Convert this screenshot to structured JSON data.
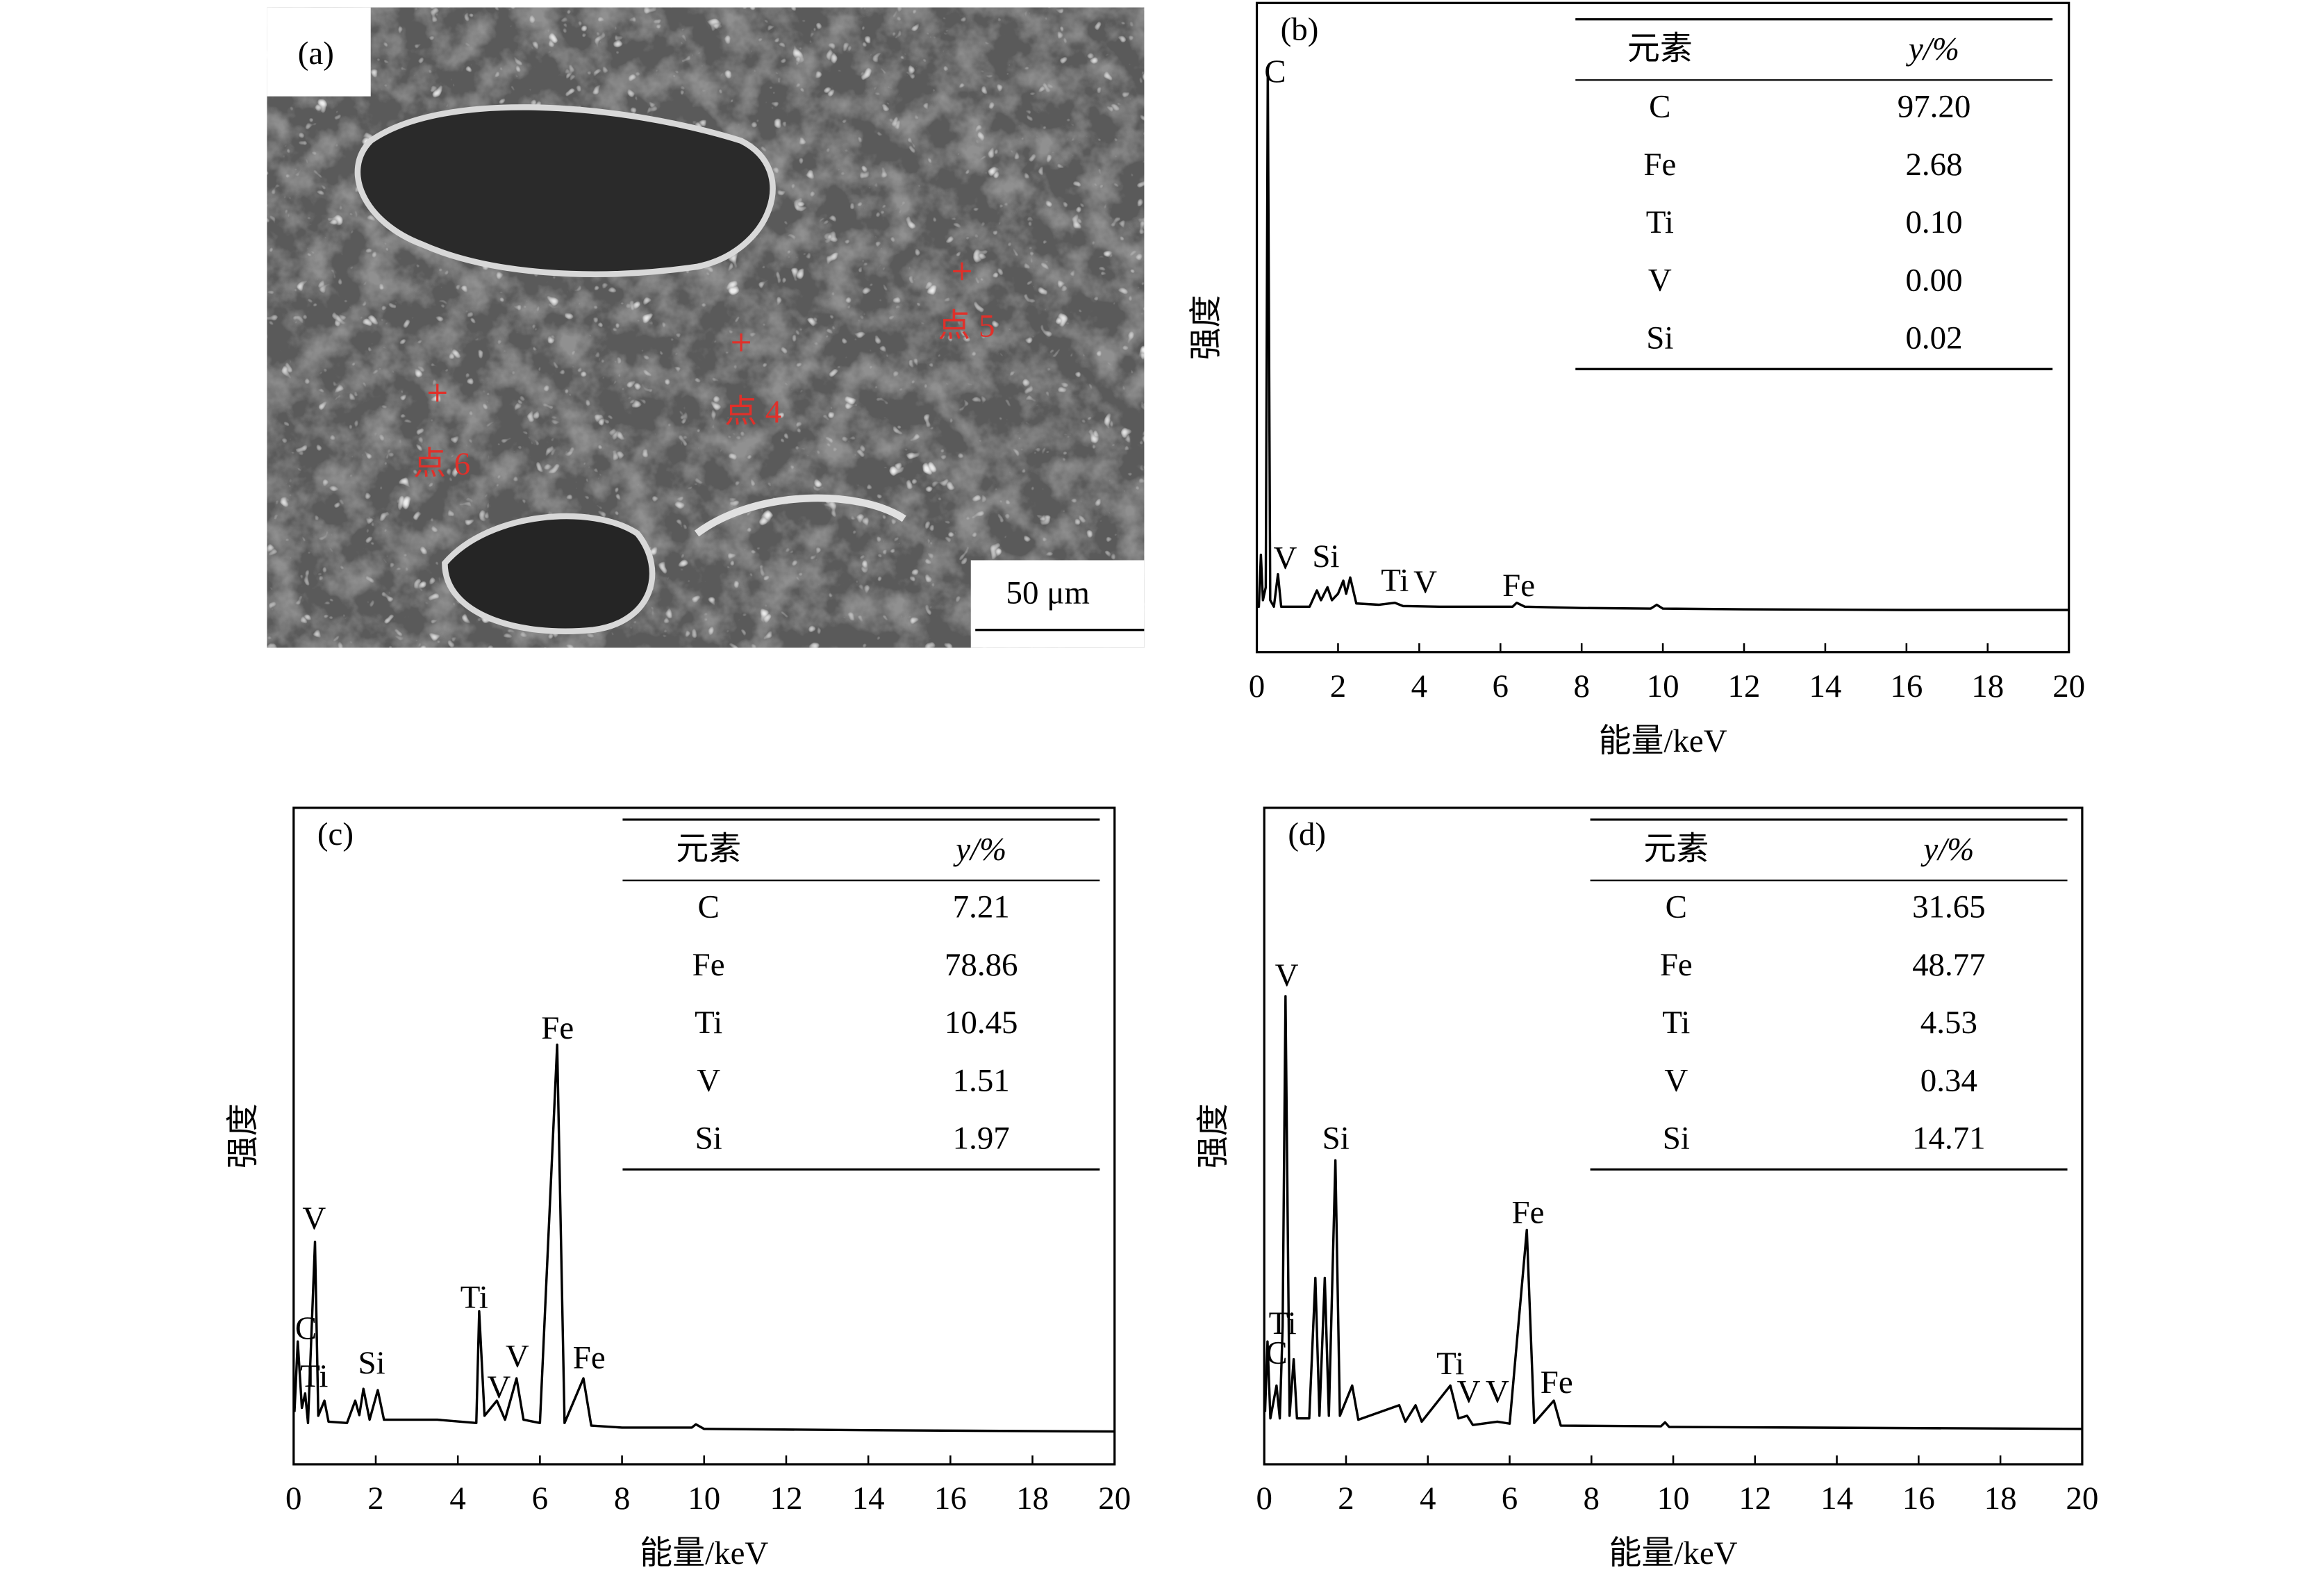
{
  "sem_image": {
    "label": "(a)",
    "points": [
      "点 4",
      "点 5",
      "点 6"
    ],
    "scale_bar": "50 μm"
  },
  "chart_data": [
    {
      "type": "line",
      "label": "(b)",
      "xlabel": "能量/keV",
      "ylabel": "强度",
      "color": "#000000",
      "xlim": [
        0,
        20
      ],
      "xticks": [
        0,
        2,
        4,
        6,
        8,
        10,
        12,
        14,
        16,
        18,
        20
      ],
      "ylim": [
        0,
        100
      ],
      "x": [
        0,
        0.05,
        0.1,
        0.15,
        0.22,
        0.27,
        0.33,
        0.42,
        0.52,
        0.6,
        0.8,
        1.0,
        1.3,
        1.48,
        1.58,
        1.74,
        1.85,
        2.0,
        2.13,
        2.2,
        2.3,
        2.45,
        3.0,
        3.4,
        3.6,
        4.5,
        6.3,
        6.4,
        6.6,
        8,
        9.7,
        9.85,
        10.0,
        12,
        16,
        20
      ],
      "values": [
        7,
        7,
        15,
        8,
        10,
        90,
        8,
        7,
        12,
        7,
        7,
        7,
        7,
        9.5,
        8,
        10,
        8,
        9,
        11,
        9,
        11.5,
        7.5,
        7.3,
        7.6,
        7.1,
        7,
        7,
        7.6,
        7,
        6.8,
        6.7,
        7.3,
        6.7,
        6.6,
        6.5,
        6.5
      ],
      "annotations": [
        {
          "text": "C",
          "x": 0.45,
          "y": 89
        },
        {
          "text": "V",
          "x": 0.7,
          "y": 14
        },
        {
          "text": "Si",
          "x": 1.7,
          "y": 14.3
        },
        {
          "text": "Ti",
          "x": 3.4,
          "y": 10.6
        },
        {
          "text": "V",
          "x": 4.15,
          "y": 10.3
        },
        {
          "text": "Fe",
          "x": 6.45,
          "y": 9.8
        }
      ],
      "table": {
        "columns": [
          "元素",
          "y/%"
        ],
        "rows": [
          [
            "C",
            "97.20"
          ],
          [
            "Fe",
            "2.68"
          ],
          [
            "Ti",
            "0.10"
          ],
          [
            "V",
            "0.00"
          ],
          [
            "Si",
            "0.02"
          ]
        ]
      }
    },
    {
      "type": "line",
      "label": "(c)",
      "xlabel": "能量/keV",
      "ylabel": "强度",
      "color": "#000000",
      "xlim": [
        0,
        20
      ],
      "xticks": [
        0,
        2,
        4,
        6,
        8,
        10,
        12,
        14,
        16,
        18,
        20
      ],
      "ylim": [
        0,
        100
      ],
      "x": [
        0.02,
        0.1,
        0.2,
        0.28,
        0.35,
        0.52,
        0.6,
        0.75,
        0.85,
        1.3,
        1.5,
        1.6,
        1.7,
        1.85,
        2.05,
        2.2,
        2.5,
        3.5,
        4.45,
        4.52,
        4.65,
        4.95,
        5.15,
        5.43,
        5.6,
        6.0,
        6.42,
        6.6,
        7.06,
        7.25,
        8,
        9.7,
        9.8,
        10,
        14,
        20
      ],
      "values": [
        8,
        18.7,
        8.6,
        10.8,
        6.3,
        33.9,
        7.4,
        9.7,
        6.5,
        6.3,
        9.7,
        7.5,
        11.5,
        6.8,
        11.3,
        6.8,
        6.8,
        6.8,
        6.3,
        23.3,
        7.4,
        9.7,
        6.8,
        13.1,
        6.8,
        6.3,
        63.9,
        6.3,
        13.1,
        5.9,
        5.6,
        5.6,
        6.1,
        5.4,
        5.2,
        5.0
      ],
      "annotations": [
        {
          "text": "C",
          "x": 0.3,
          "y": 20.3
        },
        {
          "text": "Ti",
          "x": 0.5,
          "y": 13
        },
        {
          "text": "V",
          "x": 0.5,
          "y": 37
        },
        {
          "text": "Si",
          "x": 1.9,
          "y": 15
        },
        {
          "text": "Ti",
          "x": 4.4,
          "y": 25
        },
        {
          "text": "V",
          "x": 5.0,
          "y": 11.3
        },
        {
          "text": "V",
          "x": 5.45,
          "y": 16
        },
        {
          "text": "Fe",
          "x": 6.43,
          "y": 66
        },
        {
          "text": "Fe",
          "x": 7.2,
          "y": 15.8
        }
      ],
      "table": {
        "columns": [
          "元素",
          "y/%"
        ],
        "rows": [
          [
            "C",
            "7.21"
          ],
          [
            "Fe",
            "78.86"
          ],
          [
            "Ti",
            "10.45"
          ],
          [
            "V",
            "1.51"
          ],
          [
            "Si",
            "1.97"
          ]
        ]
      }
    },
    {
      "type": "line",
      "label": "(d)",
      "xlabel": "能量/keV",
      "ylabel": "强度",
      "color": "#000000",
      "xlim": [
        0,
        20
      ],
      "xticks": [
        0,
        2,
        4,
        6,
        8,
        10,
        12,
        14,
        16,
        18,
        20
      ],
      "ylim": [
        0,
        100
      ],
      "x": [
        0.02,
        0.08,
        0.15,
        0.3,
        0.38,
        0.45,
        0.52,
        0.62,
        0.72,
        0.8,
        1.1,
        1.25,
        1.35,
        1.48,
        1.58,
        1.74,
        1.85,
        2.15,
        2.3,
        3.3,
        3.45,
        3.7,
        3.85,
        4.55,
        4.75,
        4.96,
        5.1,
        5.7,
        6.0,
        6.42,
        6.6,
        7.08,
        7.25,
        9.7,
        9.8,
        9.9,
        20
      ],
      "values": [
        8,
        18.7,
        7,
        12,
        7,
        21,
        71.3,
        7.4,
        16,
        7,
        7,
        28.4,
        7.4,
        28.4,
        7.4,
        46.3,
        7.4,
        12,
        6.8,
        9,
        6.5,
        9,
        6.5,
        12,
        7,
        7.4,
        6,
        6.5,
        6.2,
        35.7,
        6.3,
        9.7,
        5.9,
        5.8,
        6.4,
        5.7,
        5.4
      ],
      "annotations": [
        {
          "text": "V",
          "x": 0.55,
          "y": 74
        },
        {
          "text": "Ti",
          "x": 0.45,
          "y": 21
        },
        {
          "text": "C",
          "x": 0.3,
          "y": 16.5
        },
        {
          "text": "Si",
          "x": 1.75,
          "y": 49.2
        },
        {
          "text": "Ti",
          "x": 4.55,
          "y": 14.9
        },
        {
          "text": "V",
          "x": 5.0,
          "y": 10.6
        },
        {
          "text": "V",
          "x": 5.7,
          "y": 10.6
        },
        {
          "text": "Fe",
          "x": 6.45,
          "y": 37.9
        },
        {
          "text": "Fe",
          "x": 7.15,
          "y": 12
        }
      ],
      "table": {
        "columns": [
          "元素",
          "y/%"
        ],
        "rows": [
          [
            "C",
            "31.65"
          ],
          [
            "Fe",
            "48.77"
          ],
          [
            "Ti",
            "4.53"
          ],
          [
            "V",
            "0.34"
          ],
          [
            "Si",
            "14.71"
          ]
        ]
      }
    }
  ]
}
